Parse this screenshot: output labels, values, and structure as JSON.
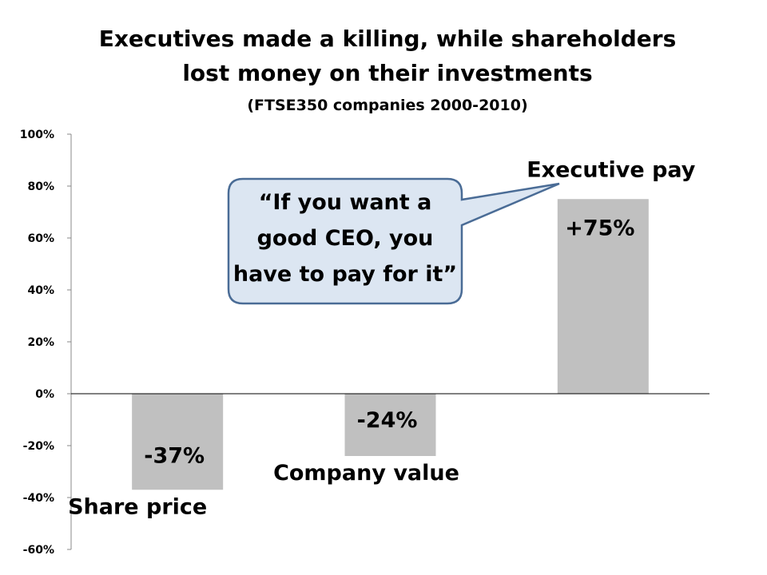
{
  "chart_data": {
    "type": "bar",
    "title": "Executives made a killing, while shareholders",
    "title_line2": "lost money on their investments",
    "subtitle": "(FTSE350 companies 2000-2010)",
    "categories": [
      "Share price",
      "Company value",
      "Executive pay"
    ],
    "values": [
      -37,
      -24,
      75
    ],
    "data_labels": [
      "-37%",
      "-24%",
      "+75%"
    ],
    "ylim": [
      -60,
      100
    ],
    "y_ticks": [
      "100%",
      "80%",
      "60%",
      "40%",
      "20%",
      "0%",
      "-20%",
      "-40%",
      "-60%"
    ],
    "xlabel": "",
    "ylabel": "",
    "grid": false,
    "legend": "none",
    "bar_color": "#c0c0c0",
    "callout": {
      "lines": [
        "“If you want a",
        "good CEO, you",
        "have to pay for it”"
      ],
      "fill": "#dce6f2",
      "stroke": "#4a6c96"
    }
  }
}
